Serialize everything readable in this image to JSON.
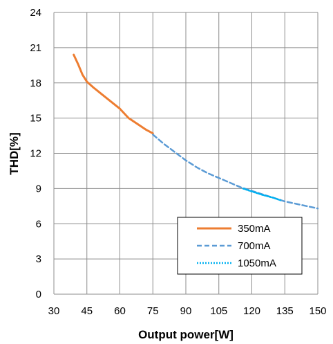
{
  "chart_data": {
    "type": "line",
    "xlabel": "Output power[W]",
    "ylabel": "THD[%]",
    "xlim": [
      30,
      150
    ],
    "ylim": [
      0,
      24
    ],
    "x_ticks": [
      30,
      45,
      60,
      75,
      90,
      105,
      120,
      135,
      150
    ],
    "y_ticks": [
      0,
      3,
      6,
      9,
      12,
      15,
      18,
      21,
      24
    ],
    "grid": true,
    "legend_position": "bottom-right",
    "series": [
      {
        "name": "350mA",
        "style": "solid",
        "color": "#ED7D31",
        "points": [
          [
            39,
            20.4
          ],
          [
            41,
            19.6
          ],
          [
            43,
            18.7
          ],
          [
            45,
            18.1
          ],
          [
            48,
            17.6
          ],
          [
            52,
            17.0
          ],
          [
            56,
            16.4
          ],
          [
            60,
            15.8
          ],
          [
            64,
            15.0
          ],
          [
            68,
            14.5
          ],
          [
            72,
            14.0
          ],
          [
            75,
            13.7
          ]
        ]
      },
      {
        "name": "700mA",
        "style": "dashed",
        "color": "#5B9BD5",
        "points": [
          [
            75,
            13.6
          ],
          [
            80,
            12.8
          ],
          [
            85,
            12.1
          ],
          [
            90,
            11.4
          ],
          [
            95,
            10.8
          ],
          [
            100,
            10.3
          ],
          [
            105,
            9.9
          ],
          [
            110,
            9.5
          ],
          [
            115,
            9.1
          ],
          [
            120,
            8.8
          ],
          [
            125,
            8.5
          ],
          [
            130,
            8.2
          ],
          [
            135,
            7.9
          ],
          [
            140,
            7.7
          ],
          [
            145,
            7.5
          ],
          [
            150,
            7.3
          ]
        ]
      },
      {
        "name": "1050mA",
        "style": "dotted",
        "color": "#00B0F0",
        "points": [
          [
            116,
            9.0
          ],
          [
            120,
            8.75
          ],
          [
            125,
            8.45
          ],
          [
            130,
            8.2
          ],
          [
            133,
            8.0
          ]
        ]
      }
    ]
  }
}
